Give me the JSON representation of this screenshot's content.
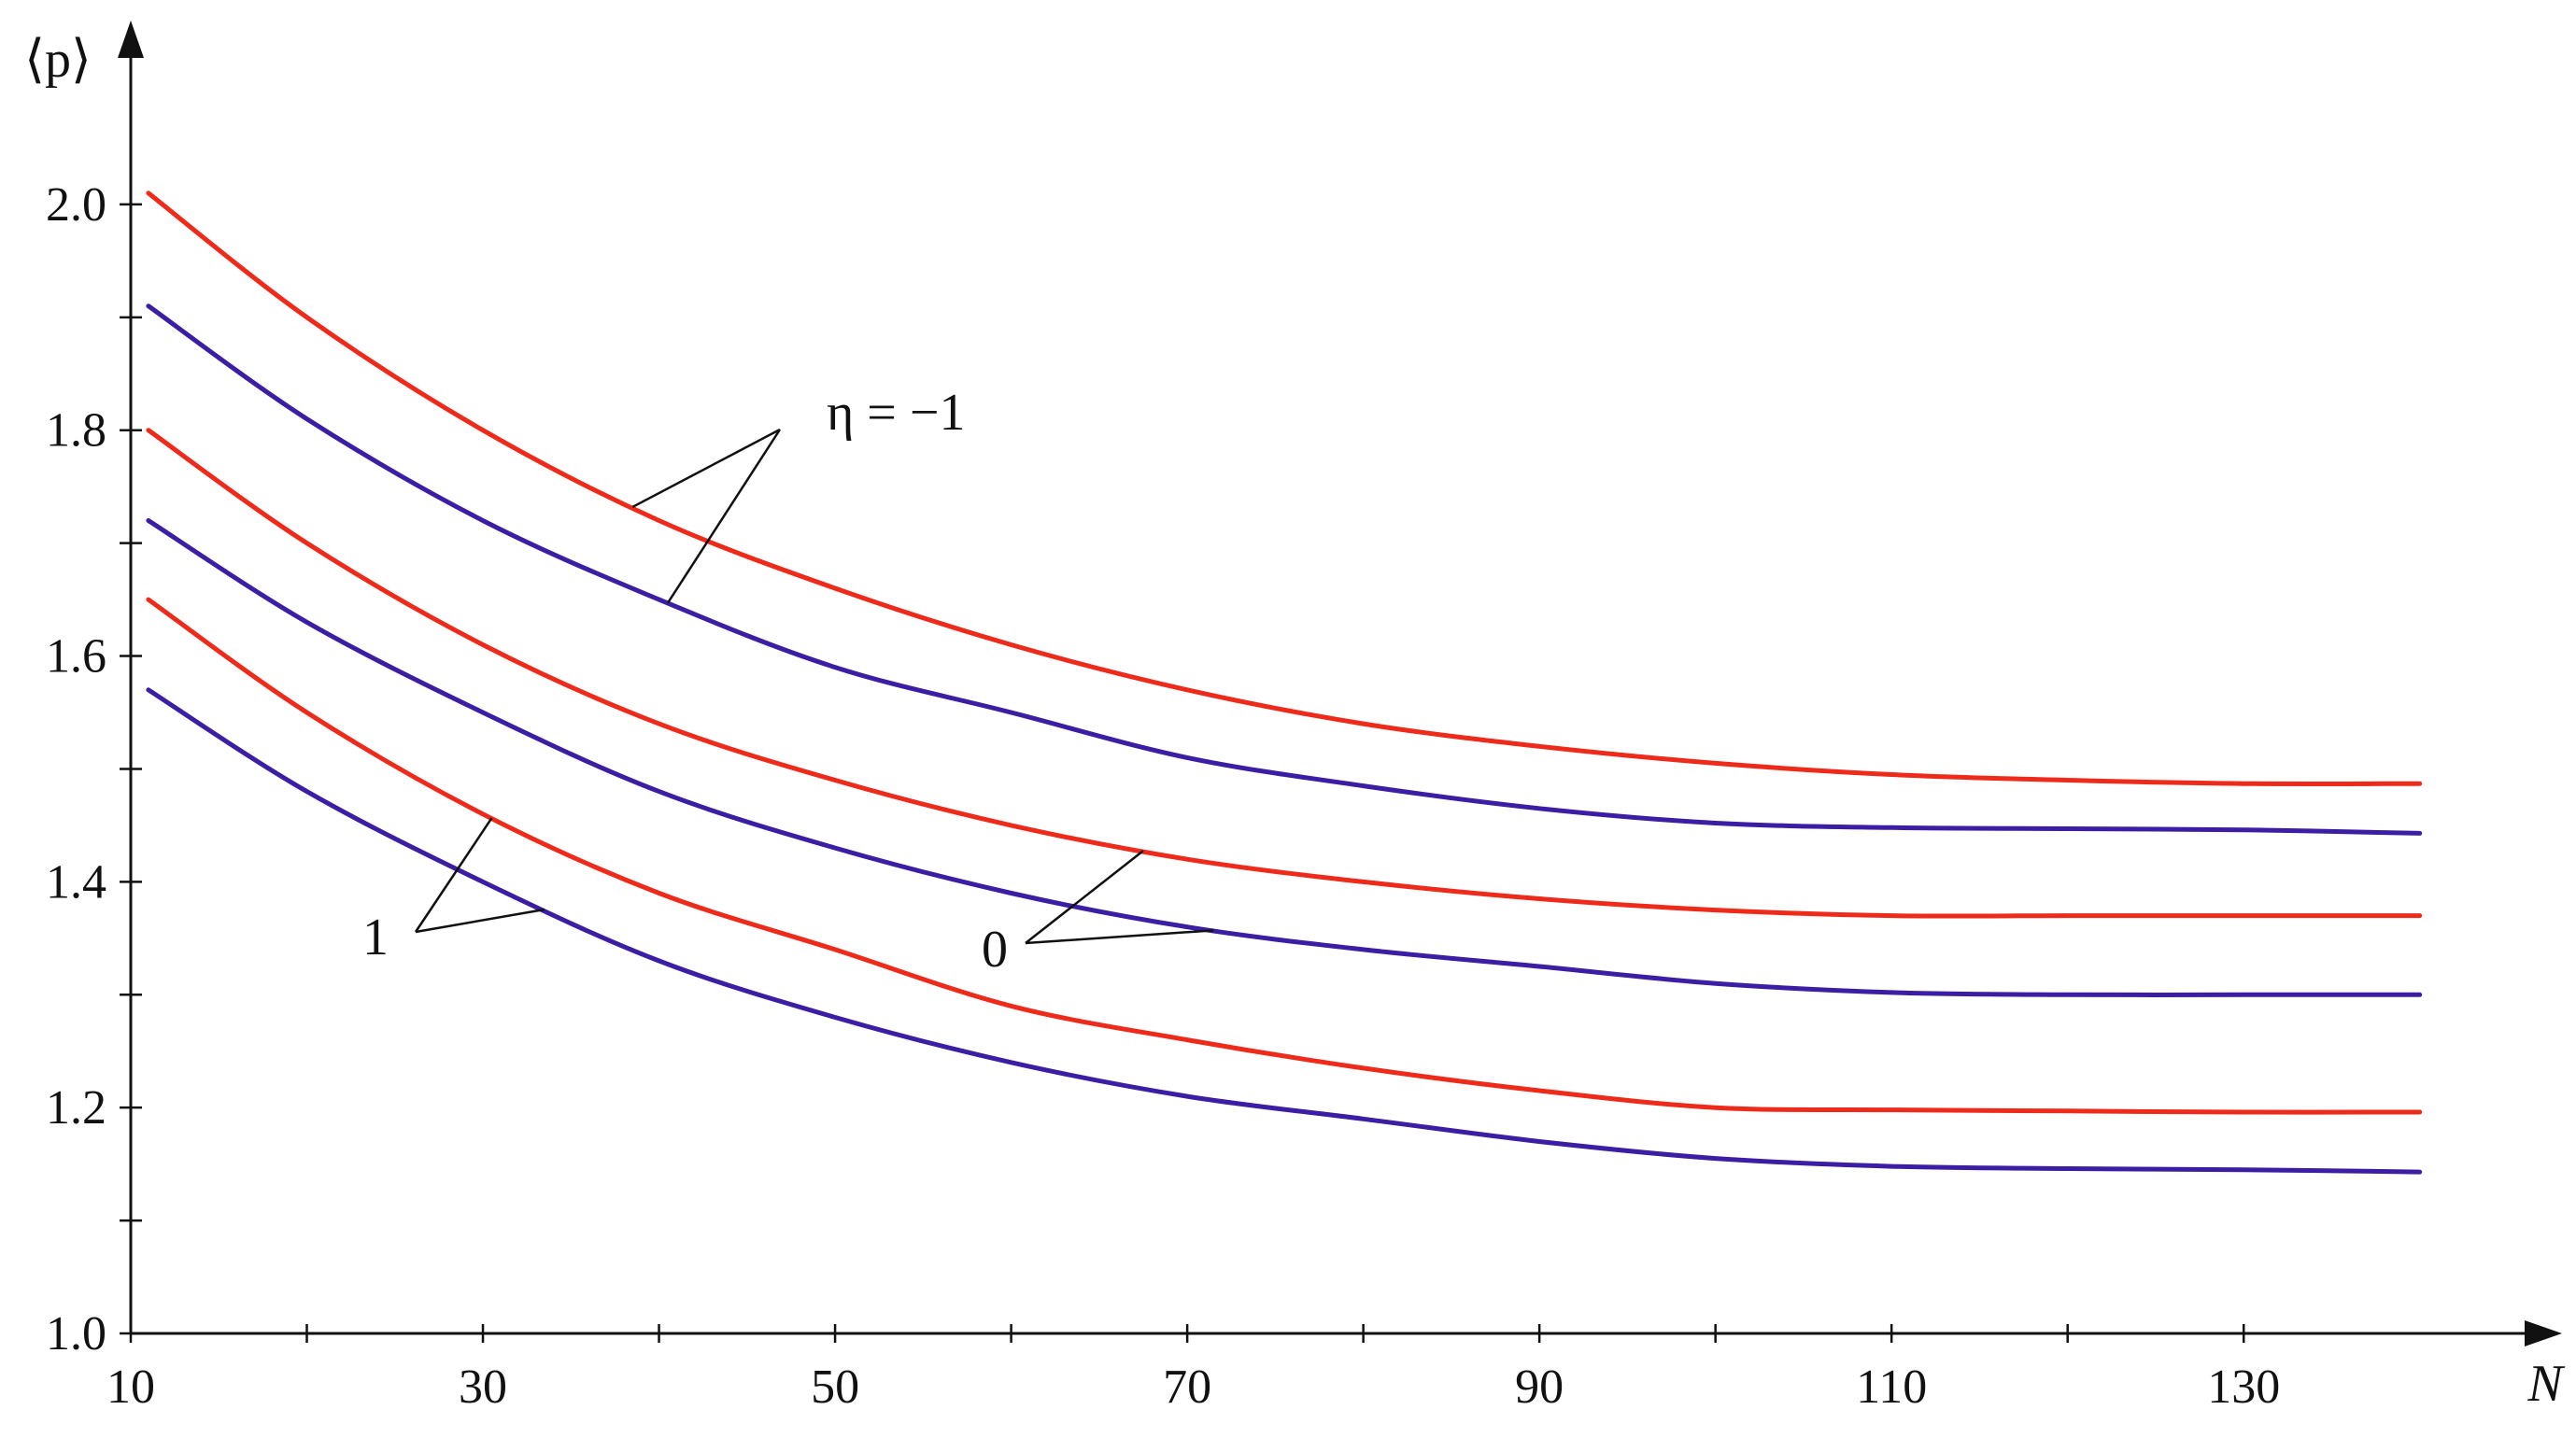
{
  "chart_data": {
    "type": "line",
    "title": "",
    "xlabel": "N",
    "ylabel": "⟨p⟩",
    "xlim": [
      10,
      145
    ],
    "ylim": [
      1.0,
      2.1
    ],
    "x_ticks": [
      10,
      30,
      50,
      70,
      90,
      110,
      130
    ],
    "y_ticks": [
      1.0,
      1.2,
      1.4,
      1.6,
      1.8,
      2.0
    ],
    "x_tick_labels": [
      "10",
      "30",
      "50",
      "70",
      "90",
      "110",
      "130"
    ],
    "y_tick_labels": [
      "1.0",
      "1.2",
      "1.4",
      "1.6",
      "1.8",
      "2.0"
    ],
    "grid": false,
    "colors": {
      "red": "#ee2a1a",
      "blue": "#3b1ea3"
    },
    "x": [
      11,
      20,
      30,
      40,
      50,
      60,
      70,
      80,
      90,
      100,
      110,
      120,
      130,
      140
    ],
    "series": [
      {
        "color": "red",
        "values": [
          2.01,
          1.9,
          1.8,
          1.72,
          1.66,
          1.61,
          1.57,
          1.54,
          1.52,
          1.505,
          1.495,
          1.49,
          1.487,
          1.487
        ]
      },
      {
        "color": "blue",
        "values": [
          1.91,
          1.81,
          1.72,
          1.65,
          1.59,
          1.55,
          1.51,
          1.485,
          1.465,
          1.452,
          1.448,
          1.447,
          1.446,
          1.443
        ]
      },
      {
        "color": "red",
        "values": [
          1.8,
          1.7,
          1.61,
          1.54,
          1.49,
          1.45,
          1.42,
          1.4,
          1.385,
          1.375,
          1.37,
          1.37,
          1.37,
          1.37
        ]
      },
      {
        "color": "blue",
        "values": [
          1.72,
          1.63,
          1.55,
          1.48,
          1.43,
          1.39,
          1.36,
          1.34,
          1.325,
          1.31,
          1.302,
          1.3,
          1.3,
          1.3
        ]
      },
      {
        "color": "red",
        "values": [
          1.65,
          1.55,
          1.46,
          1.39,
          1.34,
          1.29,
          1.26,
          1.235,
          1.215,
          1.2,
          1.198,
          1.197,
          1.196,
          1.196
        ]
      },
      {
        "color": "blue",
        "values": [
          1.57,
          1.48,
          1.4,
          1.33,
          1.28,
          1.24,
          1.21,
          1.19,
          1.17,
          1.155,
          1.148,
          1.146,
          1.145,
          1.143
        ]
      }
    ],
    "annotations": [
      {
        "text": "η = −1",
        "curves": [
          0,
          1
        ]
      },
      {
        "text": "0",
        "curves": [
          2,
          3
        ]
      },
      {
        "text": "1",
        "curves": [
          4,
          5
        ]
      }
    ]
  }
}
